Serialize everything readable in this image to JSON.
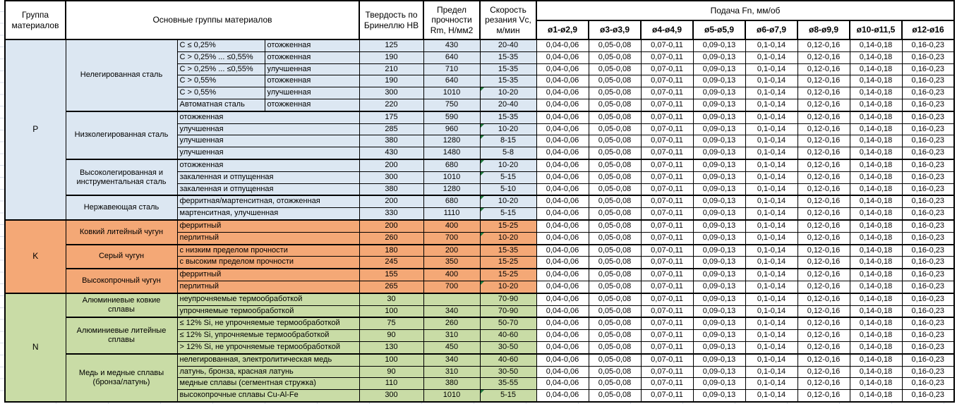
{
  "colors": {
    "border": "#000000",
    "group_p": "#DCE7F2",
    "group_k": "#F4A876",
    "group_n": "#C9DCA6",
    "note_triangle": "#1F7A3C",
    "gridline": "#D8DEE9"
  },
  "table": {
    "headers": {
      "group": "Группа материалов",
      "material_groups": "Основные группы материалов",
      "hardness": "Твердость по Бринеллю HB",
      "strength": "Предел прочности Rm, Н/мм2",
      "speed": "Скорость резания Vc, м/мин",
      "feed": "Подача Fn, мм/об",
      "feed_columns": [
        "ø1-ø2,9",
        "ø3-ø3,9",
        "ø4-ø4,9",
        "ø5-ø5,9",
        "ø6-ø7,9",
        "ø8-ø9,9",
        "ø10-ø11,5",
        "ø12-ø16"
      ]
    },
    "feed_values": [
      "0,04-0,06",
      "0,05-0,08",
      "0,07-0,11",
      "0,09-0,13",
      "0,1-0,14",
      "0,12-0,16",
      "0,14-0,18",
      "0,16-0,23"
    ],
    "groups": [
      {
        "code": "P",
        "color": "#DCE7F2",
        "subgroups": [
          {
            "name": "Нелегированная сталь",
            "rows": [
              {
                "spec": "C ≤ 0,25%",
                "state": "отожженная",
                "hb": "125",
                "rm": "430",
                "vc": "20-40",
                "note": false
              },
              {
                "spec": "C > 0,25% ... ≤0,55%",
                "state": "отожженная",
                "hb": "190",
                "rm": "640",
                "vc": "15-35",
                "note": false
              },
              {
                "spec": "C > 0,25% ... ≤0,55%",
                "state": "улучшенная",
                "hb": "210",
                "rm": "710",
                "vc": "15-35",
                "note": false
              },
              {
                "spec": "C > 0,55%",
                "state": "отожженная",
                "hb": "190",
                "rm": "640",
                "vc": "15-35",
                "note": false
              },
              {
                "spec": "C > 0,55%",
                "state": "улучшенная",
                "hb": "300",
                "rm": "1010",
                "vc": "10-20",
                "note": true
              },
              {
                "spec": "Автоматная сталь",
                "state": "отожженная",
                "hb": "220",
                "rm": "750",
                "vc": "20-40",
                "note": false
              }
            ]
          },
          {
            "name": "Низколегированная сталь",
            "rows": [
              {
                "state": "отожженная",
                "hb": "175",
                "rm": "590",
                "vc": "15-35",
                "note": false
              },
              {
                "state": "улучшенная",
                "hb": "285",
                "rm": "960",
                "vc": "10-20",
                "note": true
              },
              {
                "state": "улучшенная",
                "hb": "380",
                "rm": "1280",
                "vc": "8-15",
                "note": true
              },
              {
                "state": "улучшенная",
                "hb": "430",
                "rm": "1480",
                "vc": "5-8",
                "note": false
              }
            ]
          },
          {
            "name": "Высоколегированная и инструментальная сталь",
            "rows": [
              {
                "state": "отожженная",
                "hb": "200",
                "rm": "680",
                "vc": "10-20",
                "note": true
              },
              {
                "state": "закаленная и отпущенная",
                "hb": "300",
                "rm": "1010",
                "vc": "5-15",
                "note": true
              },
              {
                "state": "закаленная и отпущенная",
                "hb": "380",
                "rm": "1280",
                "vc": "5-10",
                "note": false
              }
            ]
          },
          {
            "name": "Нержавеющая сталь",
            "rows": [
              {
                "state": "ферритная/мартенситная, отожженная",
                "hb": "200",
                "rm": "680",
                "vc": "10-20",
                "note": true
              },
              {
                "state": "мартенситная, улучшенная",
                "hb": "330",
                "rm": "1110",
                "vc": "5-15",
                "note": true
              }
            ]
          }
        ]
      },
      {
        "code": "K",
        "color": "#F4A876",
        "subgroups": [
          {
            "name": "Ковкий литейный чугун",
            "rows": [
              {
                "state": "ферритный",
                "hb": "200",
                "rm": "400",
                "vc": "15-25",
                "note": false
              },
              {
                "state": "перлитный",
                "hb": "260",
                "rm": "700",
                "vc": "10-20",
                "note": true
              }
            ]
          },
          {
            "name": "Серый чугун",
            "rows": [
              {
                "state": "с низким пределом прочности",
                "hb": "180",
                "rm": "200",
                "vc": "15-35",
                "note": false
              },
              {
                "state": "с высоким пределом прочности",
                "hb": "245",
                "rm": "350",
                "vc": "15-25",
                "note": false
              }
            ]
          },
          {
            "name": "Высокопрочный чугун",
            "rows": [
              {
                "state": "ферритный",
                "hb": "155",
                "rm": "400",
                "vc": "15-25",
                "note": false
              },
              {
                "state": "перлитный",
                "hb": "265",
                "rm": "700",
                "vc": "10-20",
                "note": true
              }
            ]
          }
        ]
      },
      {
        "code": "N",
        "color": "#C9DCA6",
        "subgroups": [
          {
            "name": "Алюминиевые ковкие сплавы",
            "rows": [
              {
                "state": "неупрочняемые термообработкой",
                "hb": "30",
                "rm": "",
                "vc": "70-90",
                "note": false
              },
              {
                "state": "упрочняемые термообработкой",
                "hb": "100",
                "rm": "340",
                "vc": "70-90",
                "note": false
              }
            ]
          },
          {
            "name": "Алюминиевые литейные сплавы",
            "rows": [
              {
                "state": "≤ 12% Si, не упрочняемые термообработкой",
                "hb": "75",
                "rm": "260",
                "vc": "50-70",
                "note": false
              },
              {
                "state": "≤ 12% Si, упрочняемые термообработкой",
                "hb": "90",
                "rm": "310",
                "vc": "40-60",
                "note": false
              },
              {
                "state": "> 12% Si, не упрочняемые термообработкой",
                "hb": "130",
                "rm": "450",
                "vc": "30-50",
                "note": false
              }
            ]
          },
          {
            "name": "Медь и медные сплавы (бронза/латунь)",
            "rows": [
              {
                "state": "нелегированная, электролитическая медь",
                "hb": "100",
                "rm": "340",
                "vc": "40-60",
                "note": false
              },
              {
                "state": "латунь, бронза, красная латунь",
                "hb": "90",
                "rm": "310",
                "vc": "30-50",
                "note": false
              },
              {
                "state": "медные сплавы (сегментная стружка)",
                "hb": "110",
                "rm": "380",
                "vc": "35-55",
                "note": false
              },
              {
                "state": "высокопрочные сплавы Cu-Al-Fe",
                "hb": "300",
                "rm": "1010",
                "vc": "5-15",
                "note": true
              }
            ]
          }
        ]
      }
    ]
  }
}
